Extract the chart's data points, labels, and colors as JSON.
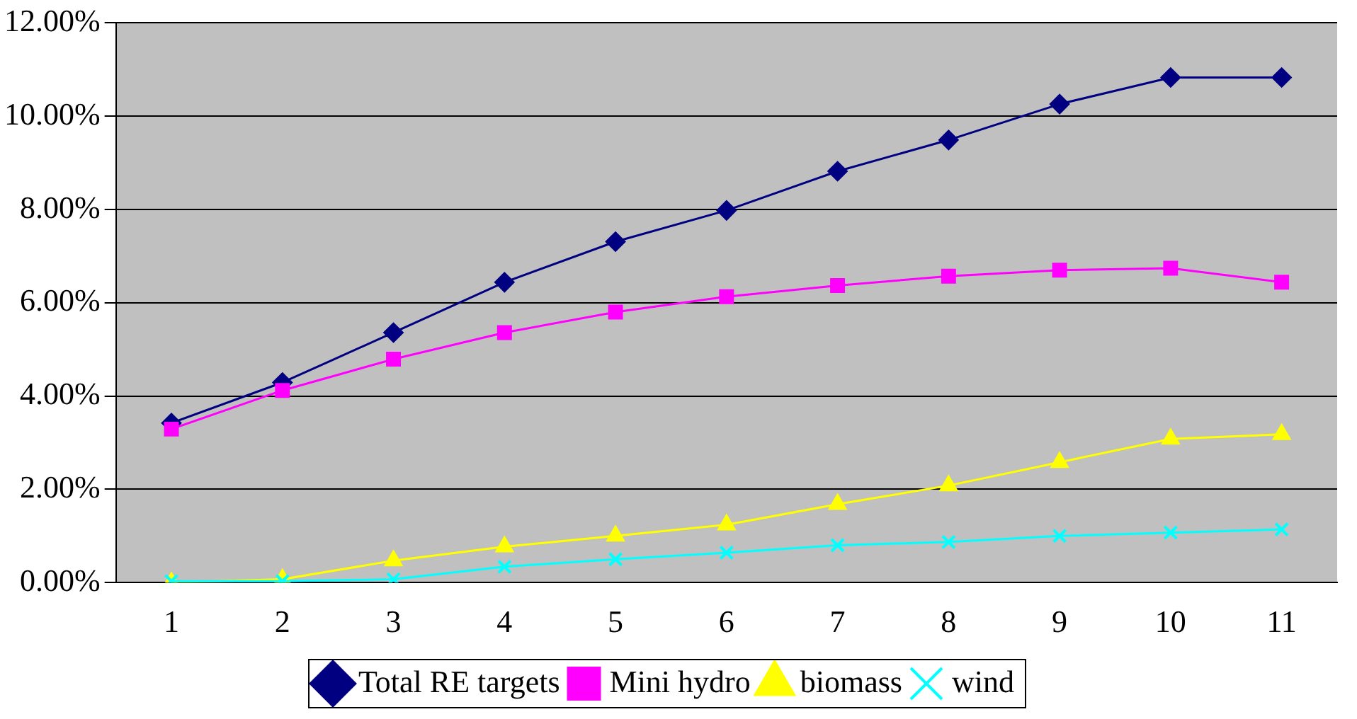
{
  "chart_data": {
    "type": "line",
    "categories": [
      "1",
      "2",
      "3",
      "4",
      "5",
      "6",
      "7",
      "8",
      "9",
      "10",
      "11"
    ],
    "series": [
      {
        "name": "Total RE targets",
        "color": "#000080",
        "marker": "diamond",
        "values": [
          3.42,
          4.29,
          5.36,
          6.44,
          7.31,
          7.98,
          8.82,
          9.49,
          10.26,
          10.83,
          10.83
        ]
      },
      {
        "name": "Mini hydro",
        "color": "#ff00ff",
        "marker": "square",
        "values": [
          3.29,
          4.12,
          4.79,
          5.36,
          5.8,
          6.13,
          6.37,
          6.57,
          6.7,
          6.74,
          6.44
        ]
      },
      {
        "name": "biomass",
        "color": "#ffff00",
        "marker": "triangle",
        "values": [
          0,
          0.07,
          0.47,
          0.77,
          1.0,
          1.24,
          1.68,
          2.08,
          2.58,
          3.08,
          3.18
        ]
      },
      {
        "name": "wind",
        "color": "#00ffff",
        "marker": "cross",
        "values": [
          0.03,
          0.03,
          0.07,
          0.34,
          0.5,
          0.64,
          0.8,
          0.87,
          1.0,
          1.07,
          1.14
        ]
      }
    ],
    "ylim": [
      0,
      12
    ],
    "yticks": [
      {
        "value": 0,
        "label": "0.00%"
      },
      {
        "value": 2,
        "label": "2.00%"
      },
      {
        "value": 4,
        "label": "4.00%"
      },
      {
        "value": 6,
        "label": "6.00%"
      },
      {
        "value": 8,
        "label": "8.00%"
      },
      {
        "value": 10,
        "label": "10.00%"
      },
      {
        "value": 12,
        "label": "12.00%"
      }
    ],
    "grid": "y",
    "legend": "bottom"
  }
}
